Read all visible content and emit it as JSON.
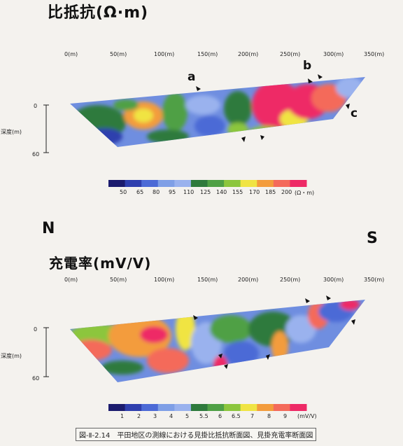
{
  "resistivity": {
    "title": "比抵抗(Ω·m)",
    "distance_ticks": [
      "0(m)",
      "50(m)",
      "100(m)",
      "150(m)",
      "200(m)",
      "250(m)",
      "300(m)",
      "350(m)"
    ],
    "depth_label": "深度(m)",
    "depth_ticks": [
      "0",
      "60"
    ],
    "markers": [
      "a",
      "b",
      "c"
    ],
    "legend_values": [
      "50",
      "65",
      "80",
      "95",
      "110",
      "125",
      "140",
      "155",
      "170",
      "185",
      "200"
    ],
    "legend_unit": "(Ω・m)",
    "legend_colors": [
      "#1c1c6e",
      "#2f3fae",
      "#4c6ad6",
      "#7f9fe6",
      "#9ab2ee",
      "#2e7a3c",
      "#4fa045",
      "#8cc63d",
      "#f0e443",
      "#f39c3c",
      "#f46a5a",
      "#ee2a66"
    ]
  },
  "directions": {
    "north": "N",
    "south": "S"
  },
  "chargeability": {
    "title": "充電率(mV/V)",
    "distance_ticks": [
      "0(m)",
      "50(m)",
      "100(m)",
      "150(m)",
      "200(m)",
      "250(m)",
      "300(m)",
      "350(m)"
    ],
    "depth_label": "深度(m)",
    "depth_ticks": [
      "0",
      "60"
    ],
    "legend_values": [
      "1",
      "2",
      "3",
      "4",
      "5",
      "5.5",
      "6",
      "6.5",
      "7",
      "8",
      "9"
    ],
    "legend_unit": "(mV/V)",
    "legend_colors": [
      "#1c1c6e",
      "#2f3fae",
      "#4c6ad6",
      "#7f9fe6",
      "#9ab2ee",
      "#2e7a3c",
      "#4fa045",
      "#8cc63d",
      "#f0e443",
      "#f39c3c",
      "#f46a5a",
      "#ee2a66"
    ]
  },
  "caption": "図-Ⅱ-2.14　平田地区の測線における見掛比抵抗断面図、見掛充電率断面図"
}
